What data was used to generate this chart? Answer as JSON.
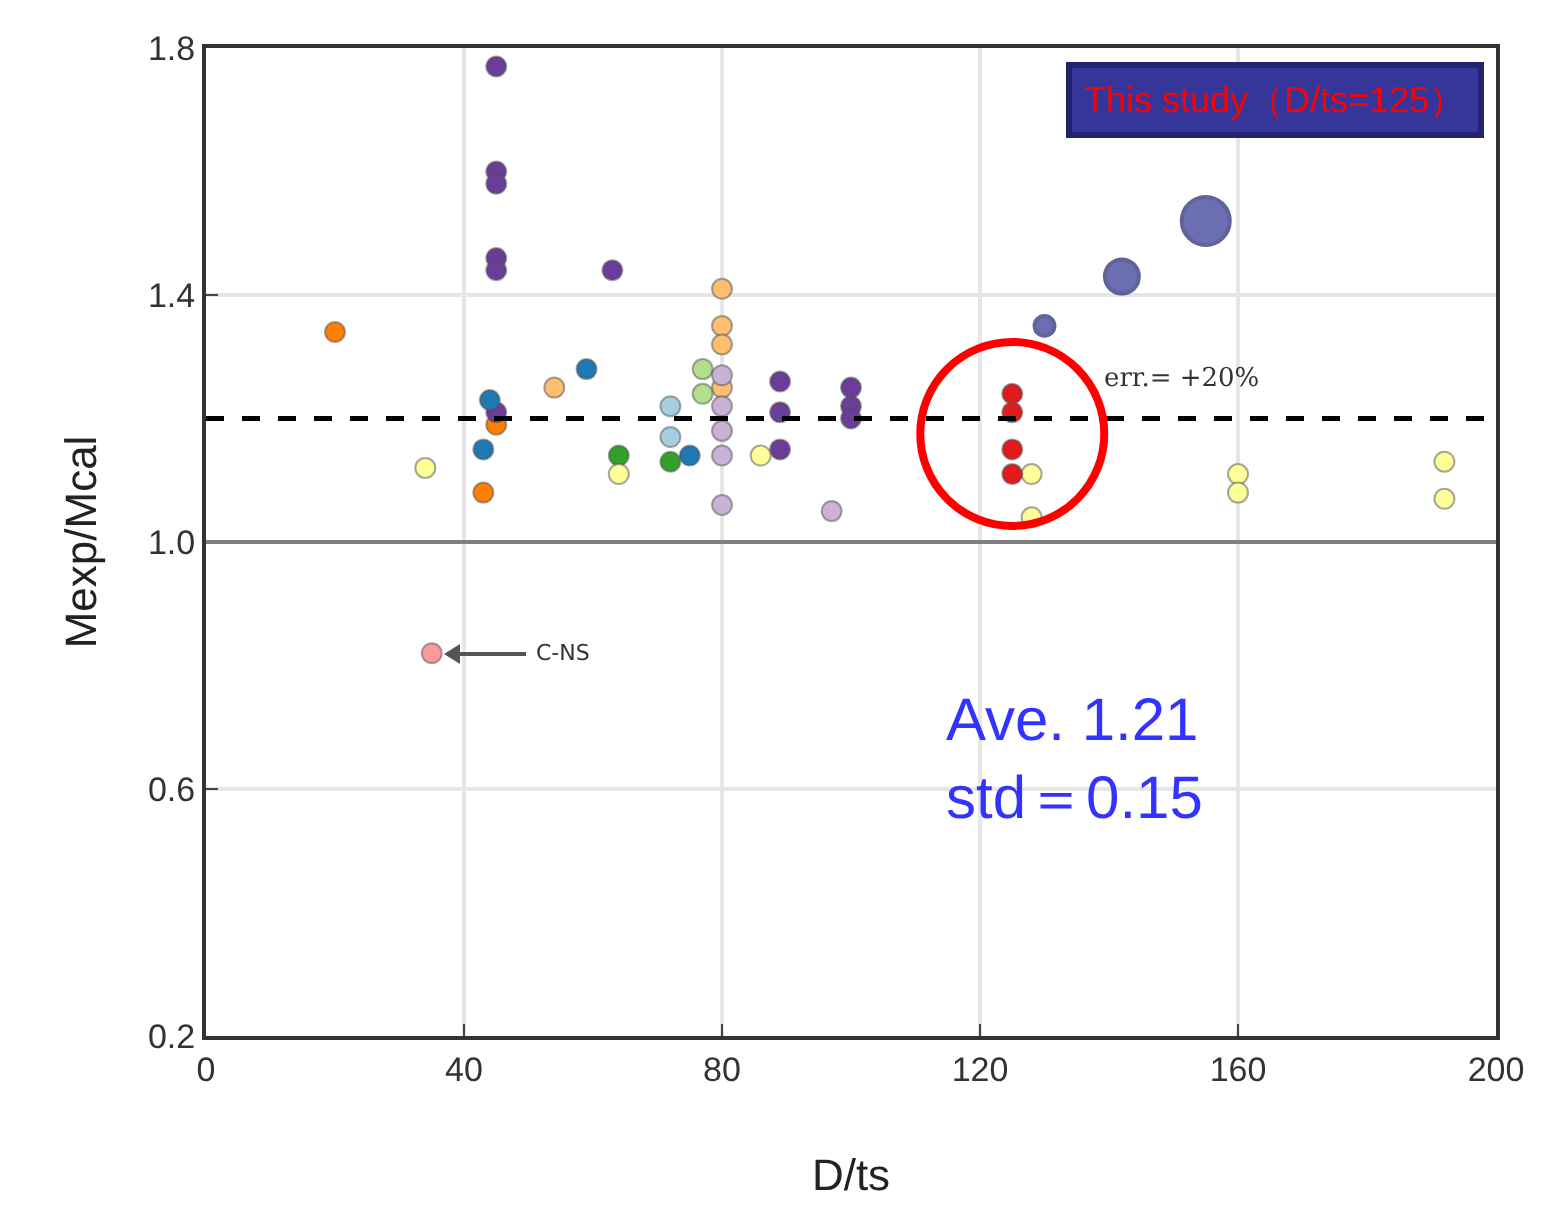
{
  "chart_data": {
    "type": "scatter",
    "xlabel": "D/ts",
    "ylabel": "Mexp/Mcal",
    "xlim": [
      0,
      200
    ],
    "xticks": [
      0,
      40,
      80,
      120,
      160,
      200
    ],
    "ylim": [
      0.2,
      1.8
    ],
    "yticks": [
      0.2,
      0.6,
      {
        "value": 1.0,
        "label": "1.0"
      },
      1.4,
      1.8
    ],
    "grid": true,
    "marker": "circle",
    "series": [
      {
        "color": "#ff7f00",
        "x": [
          20,
          45,
          43
        ],
        "values": [
          1.34,
          1.19,
          1.08
        ]
      },
      {
        "color": "#6a3d9a",
        "x": [
          45,
          45,
          45,
          45,
          45,
          63,
          45,
          89,
          89,
          89,
          100,
          100,
          100
        ],
        "values": [
          1.77,
          1.6,
          1.58,
          1.46,
          1.44,
          1.44,
          1.21,
          1.26,
          1.21,
          1.15,
          1.25,
          1.22,
          1.2
        ]
      },
      {
        "color": "#fdbf6f",
        "x": [
          54,
          80,
          80,
          80,
          80
        ],
        "values": [
          1.25,
          1.41,
          1.35,
          1.32,
          1.25
        ]
      },
      {
        "color": "#1f78b4",
        "x": [
          44,
          59,
          43,
          75
        ],
        "values": [
          1.23,
          1.28,
          1.15,
          1.14
        ]
      },
      {
        "color": "#a6cee3",
        "x": [
          72,
          72
        ],
        "values": [
          1.22,
          1.17
        ]
      },
      {
        "color": "#b2df8a",
        "x": [
          77,
          77
        ],
        "values": [
          1.28,
          1.24
        ]
      },
      {
        "color": "#33a02c",
        "x": [
          64,
          72
        ],
        "values": [
          1.14,
          1.13
        ]
      },
      {
        "color": "#cab2d6",
        "x": [
          80,
          80,
          80,
          80,
          80,
          97
        ],
        "values": [
          1.27,
          1.22,
          1.18,
          1.14,
          1.06,
          1.05
        ]
      },
      {
        "color": "#ffff99",
        "x": [
          34,
          64,
          86,
          128,
          128,
          160,
          160,
          192,
          192
        ],
        "values": [
          1.12,
          1.11,
          1.14,
          1.11,
          1.04,
          1.11,
          1.08,
          1.13,
          1.07
        ]
      },
      {
        "color": "#e31a1c",
        "x": [
          125,
          125,
          125,
          125
        ],
        "values": [
          1.24,
          1.21,
          1.15,
          1.11
        ]
      },
      {
        "type": "bubble",
        "color": "#2e3192",
        "x": [
          130,
          142,
          155
        ],
        "values": [
          1.35,
          1.43,
          1.52
        ],
        "sizes": [
          0.17,
          0.5,
          1
        ]
      },
      {
        "color": "#fb9a99",
        "x": [
          35
        ],
        "values": [
          0.82
        ]
      }
    ],
    "ref_lines": [
      {
        "axis": "y",
        "value": 1.2,
        "label": "err.= +20%",
        "line_style": "dashed",
        "color": "#000000"
      },
      {
        "axis": "y",
        "value": 1.0,
        "color": "#808080",
        "line_style": "solid"
      }
    ],
    "annotations": [
      "C-NS",
      "This study（D/ts=125）",
      "Ave. 1.21\nstd＝0.15"
    ]
  }
}
